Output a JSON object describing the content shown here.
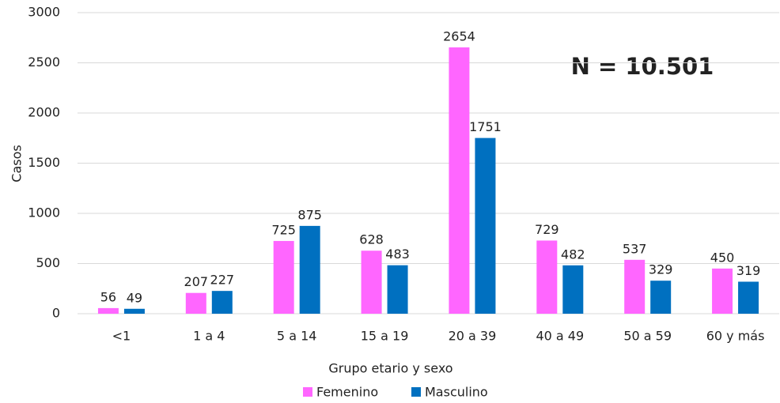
{
  "chart_data": {
    "type": "bar",
    "annotation": "N = 10.501",
    "x_label": "Grupo etario y sexo",
    "y_label": "Casos",
    "categories": [
      "<1",
      "1 a 4",
      "5 a 14",
      "15 a 19",
      "20 a 39",
      "40 a 49",
      "50 a 59",
      "60 y más"
    ],
    "series": [
      {
        "name": "Femenino",
        "color": "#ff66ff",
        "values": [
          56,
          207,
          725,
          628,
          2654,
          729,
          537,
          450
        ]
      },
      {
        "name": "Masculino",
        "color": "#0070c0",
        "values": [
          49,
          227,
          875,
          483,
          1751,
          482,
          329,
          319
        ]
      }
    ],
    "ylim": [
      0,
      3000
    ],
    "yticks": [
      0,
      500,
      1000,
      1500,
      2000,
      2500,
      3000
    ],
    "grid": true,
    "legend": "bottom",
    "data_labels": true
  }
}
